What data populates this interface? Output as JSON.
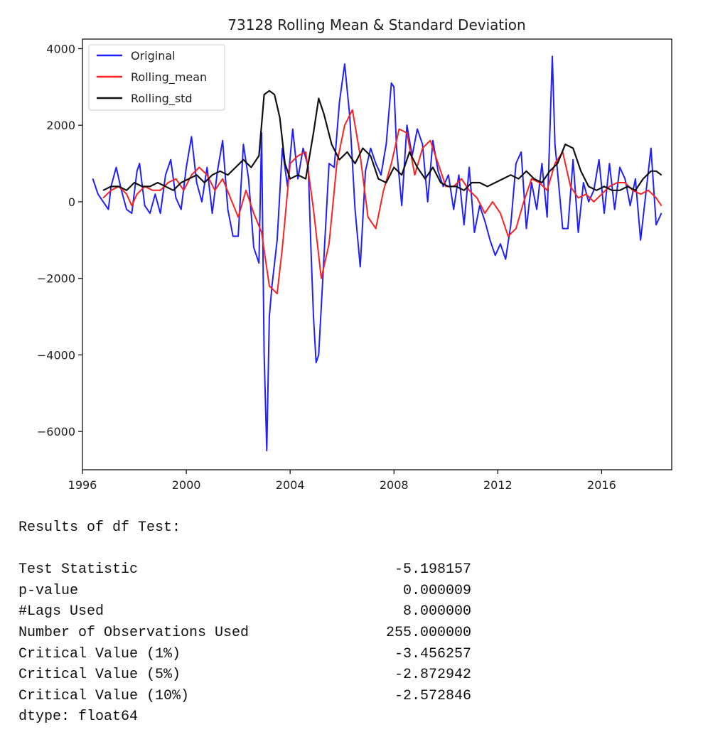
{
  "chart_data": {
    "type": "line",
    "title": "73128 Rolling Mean & Standard Deviation",
    "xlim": [
      1996.0,
      2018.7
    ],
    "ylim": [
      -7000,
      4250
    ],
    "xticks": [
      1996,
      2000,
      2004,
      2008,
      2012,
      2016
    ],
    "xtick_labels": [
      "1996",
      "2000",
      "2004",
      "2008",
      "2012",
      "2016"
    ],
    "yticks": [
      4000,
      2000,
      0,
      -2000,
      -4000,
      -6000
    ],
    "ytick_labels": [
      "4000",
      "2000",
      "0",
      "−2000",
      "−4000",
      "−6000"
    ],
    "grid": false,
    "legend_position": "upper-left",
    "series": [
      {
        "name": "Original",
        "color": "#2020ff",
        "x": [
          1996.4,
          1996.6,
          1996.8,
          1997.0,
          1997.1,
          1997.3,
          1997.5,
          1997.7,
          1997.9,
          1998.1,
          1998.2,
          1998.4,
          1998.6,
          1998.8,
          1999.0,
          1999.2,
          1999.4,
          1999.6,
          1999.8,
          2000.0,
          2000.2,
          2000.4,
          2000.6,
          2000.8,
          2001.0,
          2001.2,
          2001.4,
          2001.6,
          2001.8,
          2002.0,
          2002.2,
          2002.4,
          2002.6,
          2002.8,
          2002.9,
          2003.0,
          2003.1,
          2003.2,
          2003.3,
          2003.5,
          2003.7,
          2003.9,
          2004.1,
          2004.3,
          2004.5,
          2004.7,
          2004.8,
          2004.9,
          2005.0,
          2005.1,
          2005.3,
          2005.5,
          2005.7,
          2005.9,
          2006.1,
          2006.3,
          2006.5,
          2006.7,
          2006.9,
          2007.1,
          2007.3,
          2007.5,
          2007.7,
          2007.9,
          2008.0,
          2008.1,
          2008.3,
          2008.5,
          2008.7,
          2008.9,
          2009.1,
          2009.3,
          2009.5,
          2009.7,
          2009.9,
          2010.1,
          2010.3,
          2010.5,
          2010.7,
          2010.9,
          2011.1,
          2011.3,
          2011.5,
          2011.7,
          2011.9,
          2012.1,
          2012.3,
          2012.5,
          2012.7,
          2012.9,
          2013.1,
          2013.3,
          2013.5,
          2013.7,
          2013.9,
          2014.1,
          2014.2,
          2014.3,
          2014.5,
          2014.7,
          2014.9,
          2015.1,
          2015.3,
          2015.5,
          2015.7,
          2015.9,
          2016.1,
          2016.3,
          2016.5,
          2016.7,
          2016.9,
          2017.1,
          2017.3,
          2017.5,
          2017.7,
          2017.9,
          2018.1,
          2018.3
        ],
        "values": [
          600,
          200,
          0,
          -200,
          400,
          900,
          300,
          -200,
          -300,
          800,
          1000,
          -100,
          -300,
          200,
          -300,
          700,
          1100,
          100,
          -200,
          900,
          1700,
          500,
          0,
          900,
          -300,
          800,
          1600,
          -200,
          -900,
          -900,
          1500,
          600,
          -1200,
          -1600,
          1800,
          -4000,
          -6500,
          -3000,
          -2200,
          -1000,
          1400,
          400,
          1900,
          600,
          1400,
          900,
          -1200,
          -3000,
          -4200,
          -4000,
          -1500,
          1000,
          900,
          2600,
          3600,
          2200,
          -200,
          -1700,
          800,
          1400,
          1000,
          700,
          1500,
          3100,
          3000,
          1400,
          -100,
          2000,
          1200,
          1900,
          1500,
          0,
          1600,
          800,
          400,
          700,
          -200,
          700,
          -600,
          900,
          -800,
          -100,
          -500,
          -1000,
          -1400,
          -1100,
          -1500,
          -600,
          1000,
          1300,
          -700,
          500,
          -200,
          1000,
          -400,
          3800,
          1500,
          800,
          -700,
          -700,
          1100,
          -800,
          500,
          0,
          300,
          1100,
          -300,
          1000,
          -200,
          900,
          600,
          -100,
          600,
          -1000,
          200,
          1400,
          -600,
          -300
        ],
        "stroke_width": 2
      },
      {
        "name": "Rolling_mean",
        "color": "#ff2020",
        "x": [
          1996.8,
          1997.1,
          1997.4,
          1997.7,
          1997.9,
          1998.1,
          1998.4,
          1998.7,
          1999.0,
          1999.3,
          1999.6,
          1999.9,
          2000.2,
          2000.5,
          2000.8,
          2001.1,
          2001.4,
          2001.7,
          2002.0,
          2002.3,
          2002.6,
          2002.9,
          2003.2,
          2003.5,
          2003.7,
          2004.0,
          2004.3,
          2004.6,
          2004.9,
          2005.2,
          2005.5,
          2005.8,
          2006.1,
          2006.4,
          2006.7,
          2007.0,
          2007.3,
          2007.6,
          2007.9,
          2008.2,
          2008.5,
          2008.8,
          2009.1,
          2009.4,
          2009.7,
          2010.0,
          2010.3,
          2010.6,
          2010.9,
          2011.2,
          2011.5,
          2011.8,
          2012.1,
          2012.4,
          2012.7,
          2013.0,
          2013.3,
          2013.6,
          2013.9,
          2014.2,
          2014.5,
          2014.8,
          2015.1,
          2015.4,
          2015.7,
          2016.0,
          2016.3,
          2016.6,
          2016.9,
          2017.2,
          2017.5,
          2017.8,
          2018.1,
          2018.3
        ],
        "values": [
          100,
          300,
          400,
          200,
          -100,
          200,
          400,
          300,
          300,
          500,
          600,
          300,
          700,
          900,
          700,
          300,
          600,
          100,
          -400,
          300,
          -300,
          -800,
          -2200,
          -2400,
          -1200,
          1000,
          1200,
          1300,
          -200,
          -2000,
          -1100,
          1000,
          2000,
          2400,
          1200,
          -400,
          -700,
          300,
          1000,
          1900,
          1800,
          700,
          1400,
          1600,
          1000,
          400,
          400,
          600,
          300,
          100,
          -300,
          0,
          -300,
          -900,
          -700,
          0,
          600,
          500,
          300,
          1000,
          1300,
          400,
          100,
          200,
          0,
          200,
          400,
          500,
          500,
          300,
          200,
          300,
          100,
          -100
        ],
        "stroke_width": 2
      },
      {
        "name": "Rolling_std",
        "color": "#111111",
        "x": [
          1996.8,
          1997.1,
          1997.4,
          1997.7,
          1998.0,
          1998.3,
          1998.6,
          1998.9,
          1999.2,
          1999.5,
          1999.8,
          2000.1,
          2000.4,
          2000.7,
          2001.0,
          2001.3,
          2001.6,
          2001.9,
          2002.2,
          2002.5,
          2002.8,
          2003.0,
          2003.2,
          2003.4,
          2003.6,
          2003.8,
          2004.0,
          2004.3,
          2004.6,
          2004.9,
          2005.1,
          2005.3,
          2005.6,
          2005.9,
          2006.2,
          2006.5,
          2006.8,
          2007.1,
          2007.4,
          2007.7,
          2008.0,
          2008.3,
          2008.6,
          2008.9,
          2009.2,
          2009.5,
          2009.8,
          2010.1,
          2010.4,
          2010.7,
          2011.0,
          2011.3,
          2011.6,
          2011.9,
          2012.2,
          2012.5,
          2012.8,
          2013.1,
          2013.4,
          2013.7,
          2014.0,
          2014.3,
          2014.6,
          2014.9,
          2015.2,
          2015.5,
          2015.8,
          2016.1,
          2016.4,
          2016.7,
          2017.0,
          2017.3,
          2017.6,
          2017.9,
          2018.1,
          2018.3
        ],
        "values": [
          300,
          400,
          400,
          300,
          500,
          400,
          400,
          500,
          400,
          300,
          500,
          600,
          700,
          500,
          700,
          800,
          700,
          900,
          1100,
          900,
          1200,
          2800,
          2900,
          2800,
          2200,
          1000,
          600,
          700,
          600,
          1800,
          2700,
          2300,
          1500,
          1100,
          1300,
          1000,
          1400,
          1200,
          600,
          500,
          900,
          700,
          1300,
          900,
          600,
          900,
          500,
          400,
          400,
          300,
          500,
          500,
          400,
          500,
          600,
          700,
          600,
          800,
          600,
          500,
          800,
          1000,
          1500,
          1400,
          800,
          400,
          300,
          400,
          300,
          300,
          400,
          300,
          600,
          800,
          800,
          700
        ],
        "stroke_width": 2.2
      }
    ]
  },
  "output": {
    "header": "Results of df Test:",
    "rows": [
      {
        "label": "Test Statistic",
        "value": "-5.198157"
      },
      {
        "label": "p-value",
        "value": "0.000009"
      },
      {
        "label": "#Lags Used",
        "value": "8.000000"
      },
      {
        "label": "Number of Observations Used",
        "value": "255.000000"
      },
      {
        "label": "Critical Value (1%)",
        "value": "-3.456257"
      },
      {
        "label": "Critical Value (5%)",
        "value": "-2.872942"
      },
      {
        "label": "Critical Value (10%)",
        "value": "-2.572846"
      }
    ],
    "dtype_line": "dtype: float64"
  }
}
